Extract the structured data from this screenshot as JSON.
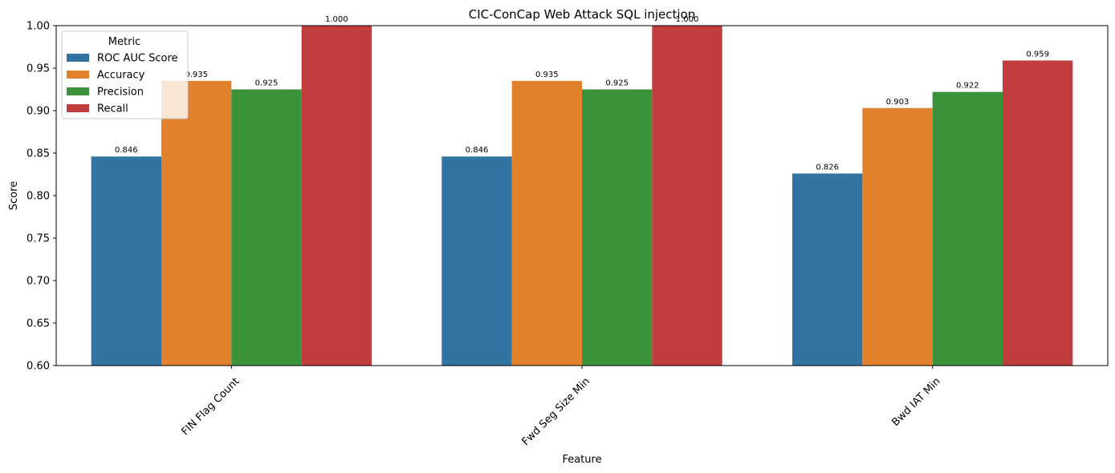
{
  "chart_data": {
    "type": "bar",
    "title": "CIC-ConCap Web Attack SQL injection",
    "xlabel": "Feature",
    "ylabel": "Score",
    "ylim": [
      0.6,
      1.0
    ],
    "yticks": [
      "0.60",
      "0.65",
      "0.70",
      "0.75",
      "0.80",
      "0.85",
      "0.90",
      "0.95",
      "1.00"
    ],
    "categories": [
      "FIN Flag Count",
      "Fwd Seg Size Min",
      "Bwd IAT Min"
    ],
    "series": [
      {
        "name": "ROC AUC Score",
        "color": "#3274a1",
        "values": [
          0.846,
          0.846,
          0.826
        ],
        "labels": [
          "0.846",
          "0.846",
          "0.826"
        ]
      },
      {
        "name": "Accuracy",
        "color": "#e1812c",
        "values": [
          0.935,
          0.935,
          0.903
        ],
        "labels": [
          "0.935",
          "0.935",
          "0.903"
        ]
      },
      {
        "name": "Precision",
        "color": "#3a923a",
        "values": [
          0.925,
          0.925,
          0.922
        ],
        "labels": [
          "0.925",
          "0.925",
          "0.922"
        ]
      },
      {
        "name": "Recall",
        "color": "#c03d3e",
        "values": [
          1.0,
          1.0,
          0.959
        ],
        "labels": [
          "1.000",
          "1.000",
          "0.959"
        ]
      }
    ],
    "legend": {
      "title": "Metric",
      "placement": "top-left"
    },
    "grid": false,
    "xtick_rotation_deg": 45
  }
}
